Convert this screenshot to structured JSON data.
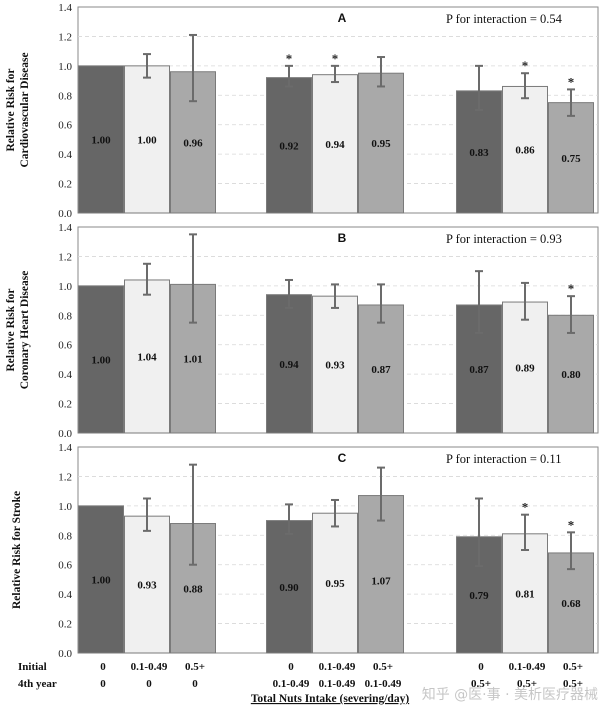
{
  "chart_data": [
    {
      "type": "bar",
      "panel": "A",
      "ylabel_lines": [
        "Relative Risk for",
        "Cardiovascular Disease"
      ],
      "interaction_text": "P for interaction  = 0.54",
      "ylim": [
        0,
        1.4
      ],
      "yticks": [
        "0.0",
        "0.2",
        "0.4",
        "0.6",
        "0.8",
        "1.0",
        "1.2",
        "1.4"
      ],
      "groups": [
        {
          "bars": [
            {
              "value": 1.0,
              "label": "1.00",
              "lower": 1.0,
              "upper": 1.0,
              "star": false
            },
            {
              "value": 1.0,
              "label": "1.00",
              "lower": 0.92,
              "upper": 1.08,
              "star": false
            },
            {
              "value": 0.96,
              "label": "0.96",
              "lower": 0.76,
              "upper": 1.21,
              "star": false
            }
          ]
        },
        {
          "bars": [
            {
              "value": 0.92,
              "label": "0.92",
              "lower": 0.86,
              "upper": 1.0,
              "star": true
            },
            {
              "value": 0.94,
              "label": "0.94",
              "lower": 0.89,
              "upper": 1.0,
              "star": true
            },
            {
              "value": 0.95,
              "label": "0.95",
              "lower": 0.86,
              "upper": 1.06,
              "star": false
            }
          ]
        },
        {
          "bars": [
            {
              "value": 0.83,
              "label": "0.83",
              "lower": 0.7,
              "upper": 1.0,
              "star": false
            },
            {
              "value": 0.86,
              "label": "0.86",
              "lower": 0.78,
              "upper": 0.95,
              "star": true
            },
            {
              "value": 0.75,
              "label": "0.75",
              "lower": 0.66,
              "upper": 0.84,
              "star": true
            }
          ]
        }
      ]
    },
    {
      "type": "bar",
      "panel": "B",
      "ylabel_lines": [
        "Relative Risk for",
        "Coronary Heart Disease"
      ],
      "interaction_text": "P for interaction  = 0.93",
      "ylim": [
        0,
        1.4
      ],
      "yticks": [
        "0.0",
        "0.2",
        "0.4",
        "0.6",
        "0.8",
        "1.0",
        "1.2",
        "1.4"
      ],
      "groups": [
        {
          "bars": [
            {
              "value": 1.0,
              "label": "1.00",
              "lower": 1.0,
              "upper": 1.0,
              "star": false
            },
            {
              "value": 1.04,
              "label": "1.04",
              "lower": 0.94,
              "upper": 1.15,
              "star": false
            },
            {
              "value": 1.01,
              "label": "1.01",
              "lower": 0.75,
              "upper": 1.35,
              "star": false
            }
          ]
        },
        {
          "bars": [
            {
              "value": 0.94,
              "label": "0.94",
              "lower": 0.85,
              "upper": 1.04,
              "star": false
            },
            {
              "value": 0.93,
              "label": "0.93",
              "lower": 0.85,
              "upper": 1.01,
              "star": false
            },
            {
              "value": 0.87,
              "label": "0.87",
              "lower": 0.75,
              "upper": 1.01,
              "star": false
            }
          ]
        },
        {
          "bars": [
            {
              "value": 0.87,
              "label": "0.87",
              "lower": 0.68,
              "upper": 1.1,
              "star": false
            },
            {
              "value": 0.89,
              "label": "0.89",
              "lower": 0.77,
              "upper": 1.02,
              "star": false
            },
            {
              "value": 0.8,
              "label": "0.80",
              "lower": 0.68,
              "upper": 0.93,
              "star": true
            }
          ]
        }
      ]
    },
    {
      "type": "bar",
      "panel": "C",
      "ylabel_lines": [
        "Relative Risk for Stroke"
      ],
      "interaction_text": "P for interaction  = 0.11",
      "ylim": [
        0,
        1.4
      ],
      "yticks": [
        "0.0",
        "0.2",
        "0.4",
        "0.6",
        "0.8",
        "1.0",
        "1.2",
        "1.4"
      ],
      "groups": [
        {
          "bars": [
            {
              "value": 1.0,
              "label": "1.00",
              "lower": 1.0,
              "upper": 1.0,
              "star": false
            },
            {
              "value": 0.93,
              "label": "0.93",
              "lower": 0.83,
              "upper": 1.05,
              "star": false
            },
            {
              "value": 0.88,
              "label": "0.88",
              "lower": 0.6,
              "upper": 1.28,
              "star": false
            }
          ]
        },
        {
          "bars": [
            {
              "value": 0.9,
              "label": "0.90",
              "lower": 0.81,
              "upper": 1.01,
              "star": false
            },
            {
              "value": 0.95,
              "label": "0.95",
              "lower": 0.86,
              "upper": 1.04,
              "star": false
            },
            {
              "value": 1.07,
              "label": "1.07",
              "lower": 0.9,
              "upper": 1.26,
              "star": false
            }
          ]
        },
        {
          "bars": [
            {
              "value": 0.79,
              "label": "0.79",
              "lower": 0.59,
              "upper": 1.05,
              "star": false
            },
            {
              "value": 0.81,
              "label": "0.81",
              "lower": 0.7,
              "upper": 0.94,
              "star": true
            },
            {
              "value": 0.68,
              "label": "0.68",
              "lower": 0.57,
              "upper": 0.82,
              "star": true
            }
          ]
        }
      ]
    }
  ],
  "bar_colors": [
    "#666666",
    "#f0f0f0",
    "#a9a9a9"
  ],
  "bar_stroke": "#7a7a7a",
  "star_symbol": "*",
  "x_axis": {
    "row1_label": "Initial",
    "row2_label": "4th year",
    "initial_values": [
      "0",
      "0.1-0.49",
      "0.5+",
      "0",
      "0.1-0.49",
      "0.5+",
      "0",
      "0.1-0.49",
      "0.5+"
    ],
    "fourth_year_values": [
      "0",
      "0",
      "0",
      "0.1-0.49",
      "0.1-0.49",
      "0.1-0.49",
      "0.5+",
      "0.5+",
      "0.5+"
    ],
    "title": "Total Nuts Intake (severing/day)"
  },
  "watermark": "知乎 @医·事 · 美析医疗器械"
}
